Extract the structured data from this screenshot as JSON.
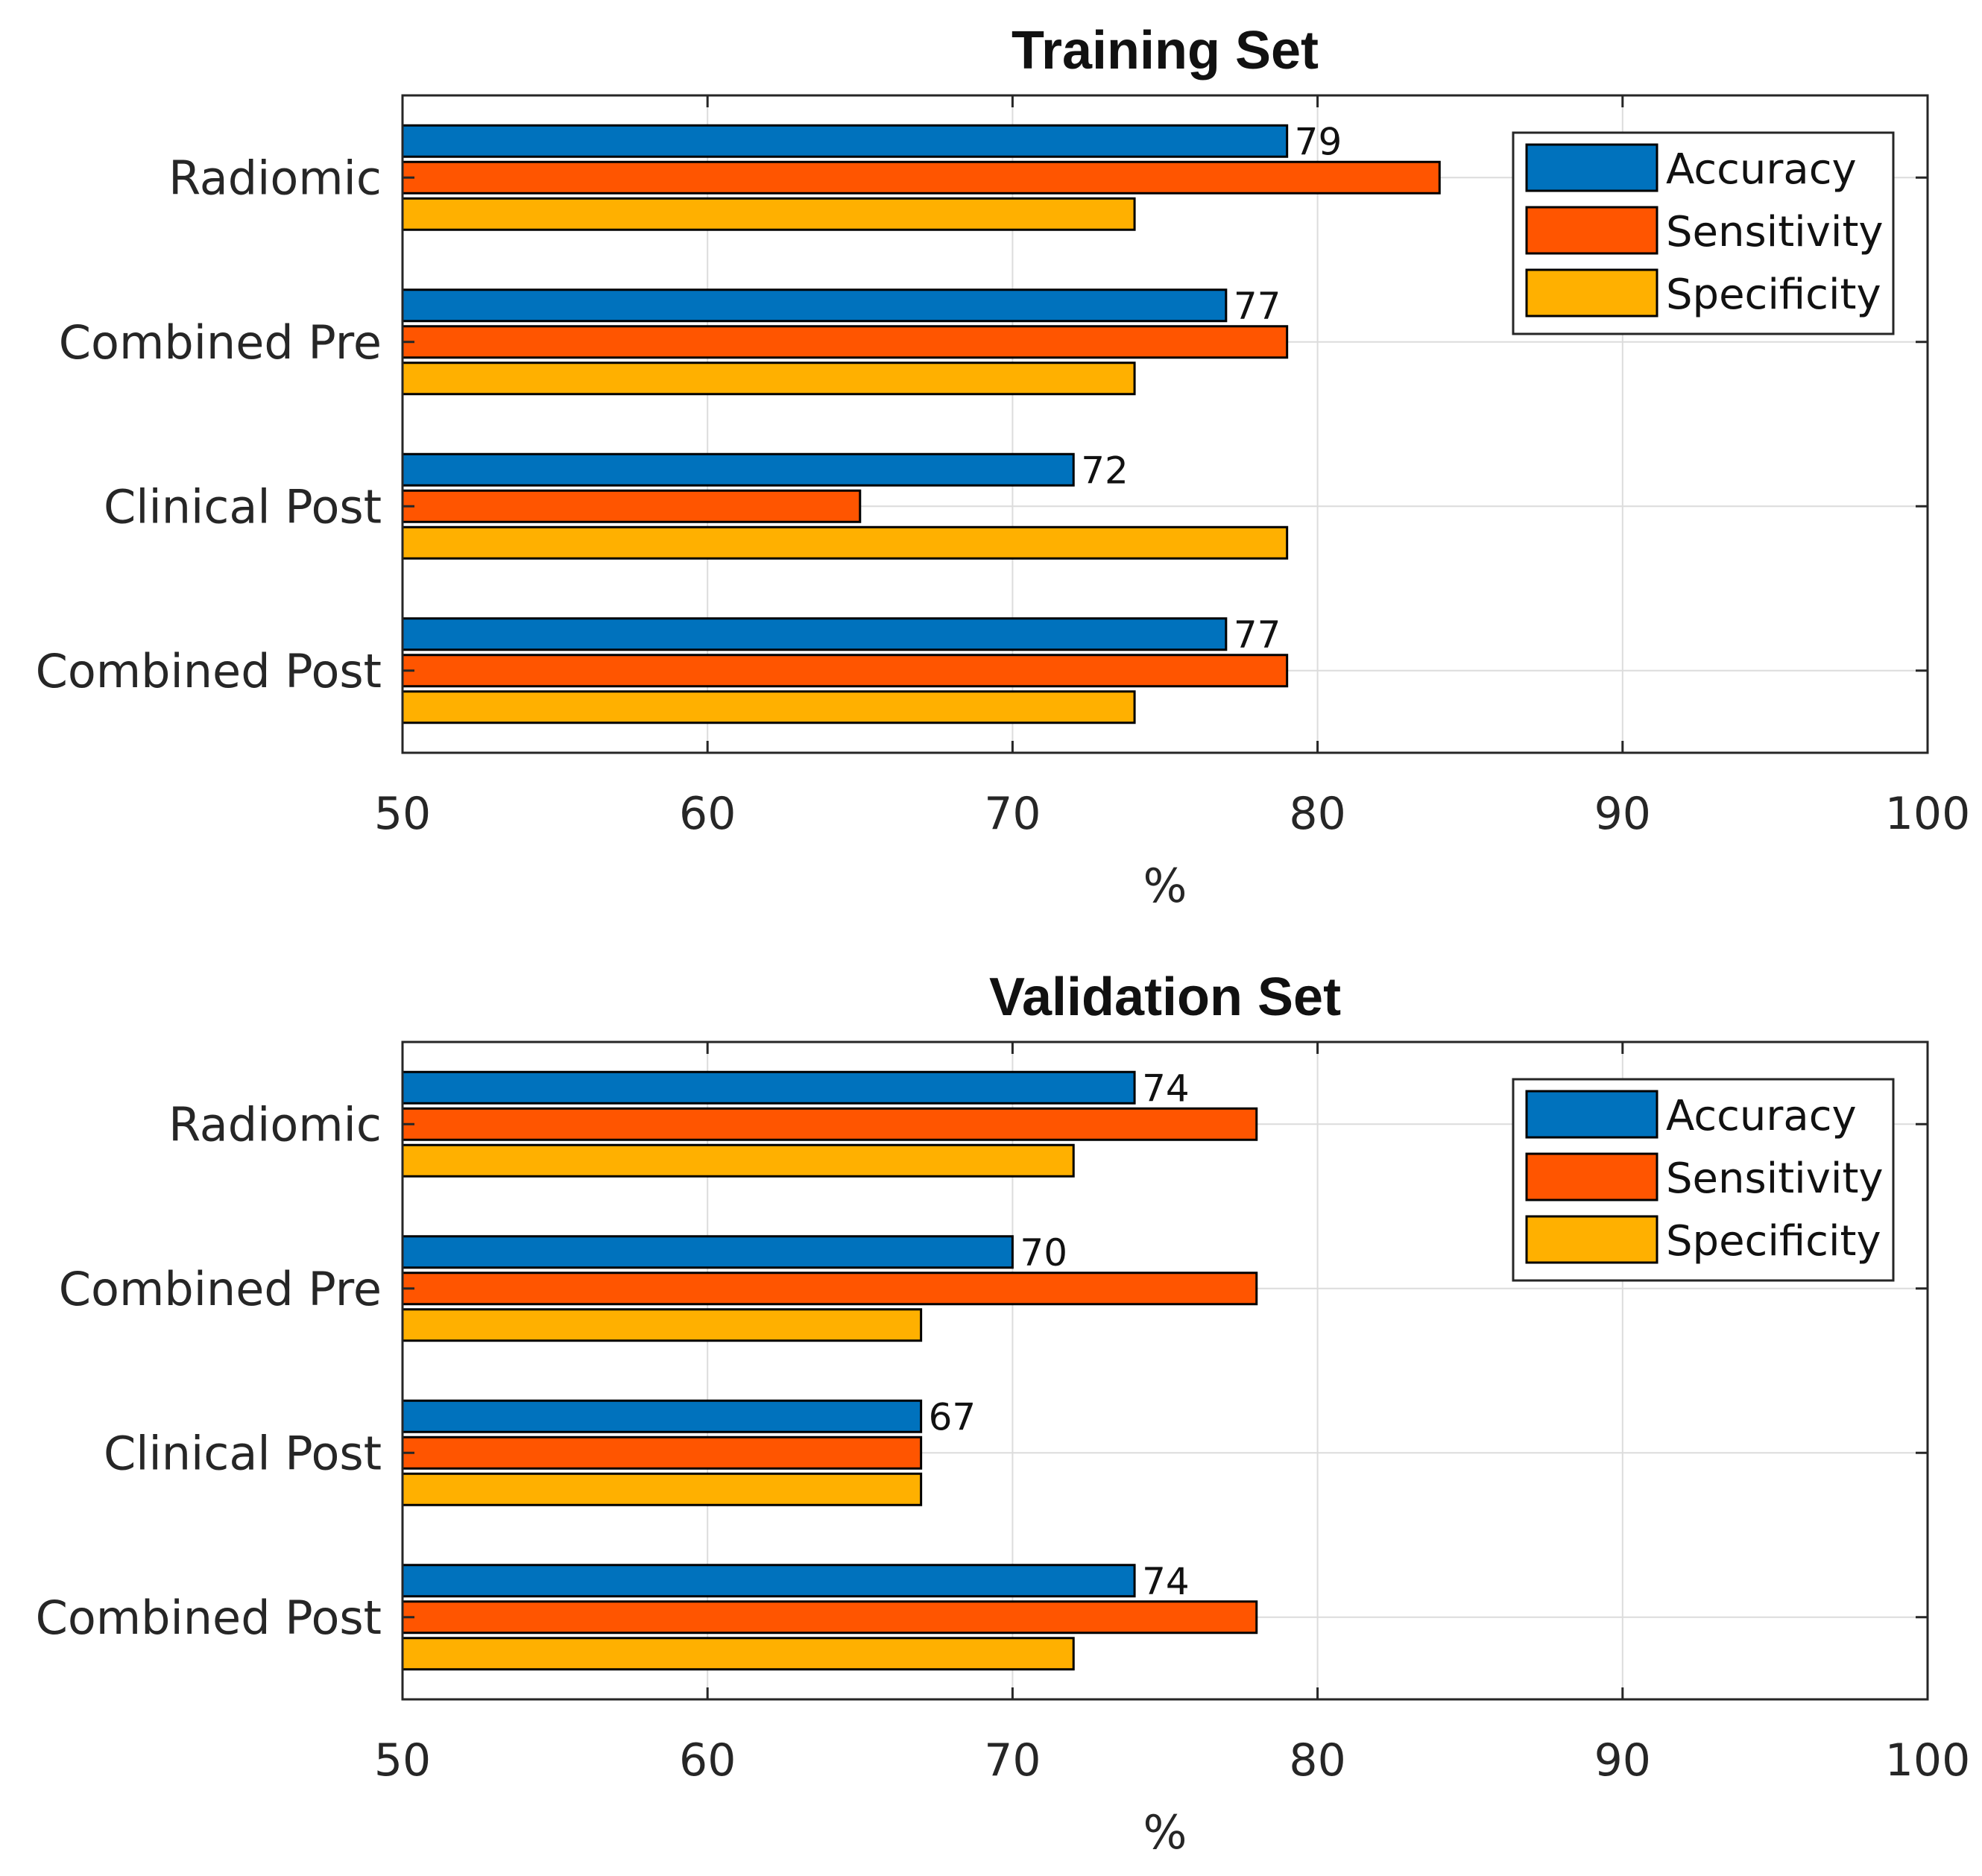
{
  "chart_data": [
    {
      "type": "bar",
      "orientation": "horizontal",
      "title": "Training Set",
      "xlabel": "%",
      "ylabel": "",
      "xlim": [
        50,
        100
      ],
      "xticks": [
        "50",
        "60",
        "70",
        "80",
        "90",
        "100"
      ],
      "categories": [
        "Radiomic",
        "Combined Pre",
        "Clinical Post",
        "Combined Post"
      ],
      "series": [
        {
          "name": "Accuracy",
          "color": "#0072BD",
          "values": [
            79,
            77,
            72,
            77
          ]
        },
        {
          "name": "Sensitivity",
          "color": "#FF5500",
          "values": [
            84,
            79,
            65,
            79
          ]
        },
        {
          "name": "Specificity",
          "color": "#FFB000",
          "values": [
            74,
            74,
            79,
            74
          ]
        }
      ],
      "data_labels": [
        "79",
        "77",
        "72",
        "77"
      ],
      "grid": true,
      "legend_position": "top-right"
    },
    {
      "type": "bar",
      "orientation": "horizontal",
      "title": "Validation Set",
      "xlabel": "%",
      "ylabel": "",
      "xlim": [
        50,
        100
      ],
      "xticks": [
        "50",
        "60",
        "70",
        "80",
        "90",
        "100"
      ],
      "categories": [
        "Radiomic",
        "Combined Pre",
        "Clinical Post",
        "Combined Post"
      ],
      "series": [
        {
          "name": "Accuracy",
          "color": "#0072BD",
          "values": [
            74,
            70,
            67,
            74
          ]
        },
        {
          "name": "Sensitivity",
          "color": "#FF5500",
          "values": [
            78,
            78,
            67,
            78
          ]
        },
        {
          "name": "Specificity",
          "color": "#FFB000",
          "values": [
            72,
            67,
            67,
            72
          ]
        }
      ],
      "data_labels": [
        "74",
        "70",
        "67",
        "74"
      ],
      "grid": true,
      "legend_position": "top-right"
    }
  ]
}
